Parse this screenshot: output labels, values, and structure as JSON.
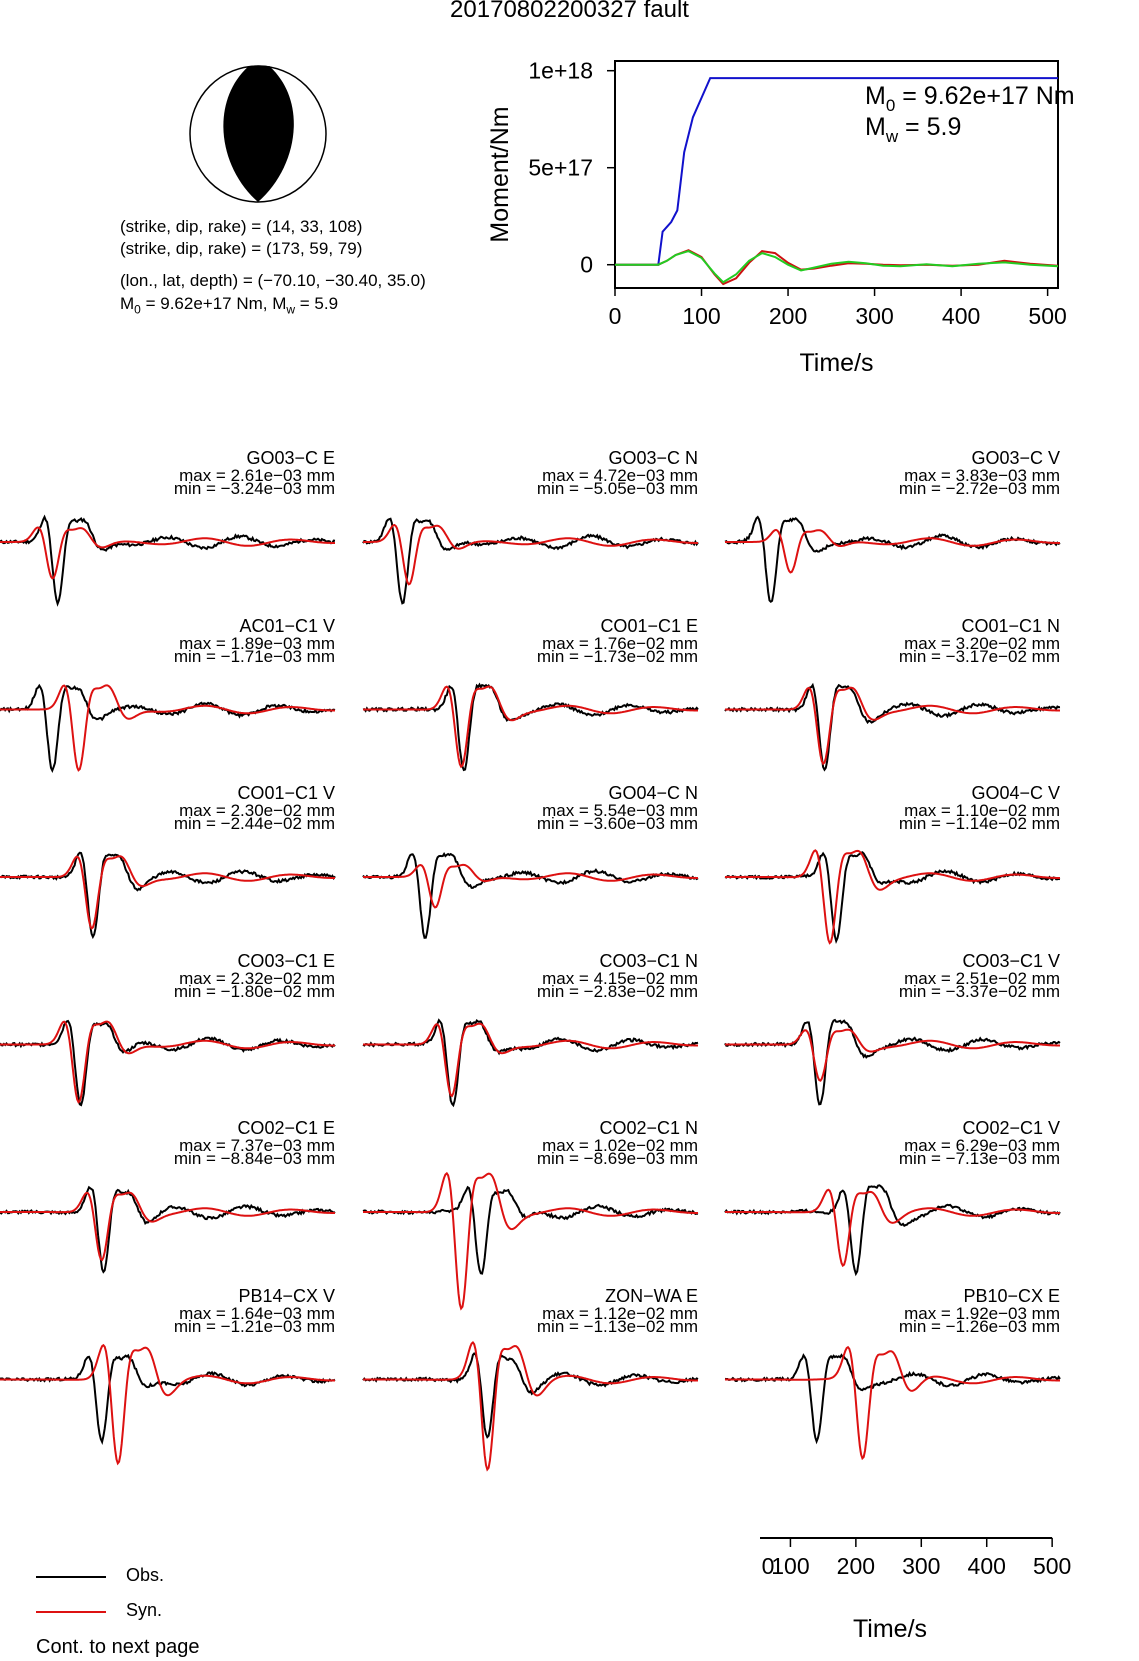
{
  "title": "20170802200327 fault",
  "params": {
    "line1": "(strike, dip, rake) = (14, 33, 108)",
    "line2": "(strike, dip, rake) = (173, 59, 79)",
    "line3": "(lon., lat, depth) = (−70.10, −30.40, 35.0)",
    "line4_m0": "M",
    "line4_m0_sub": "0",
    "line4_m0_val": " = 9.62e+17 Nm, M",
    "line4_mw_sub": "w",
    "line4_mw_val": " = 5.9"
  },
  "colors": {
    "obs": "#000000",
    "syn": "#dd1111",
    "moment": "#1111cc",
    "mrf_red": "#cc1111",
    "mrf_green": "#22cc22"
  },
  "chart_data": [
    {
      "type": "line",
      "title": "",
      "xlabel": "Time/s",
      "ylabel": "Moment/Nm",
      "xlim": [
        0,
        512
      ],
      "ylim": [
        -1.2e+17,
        1.05e+18
      ],
      "xticks": [
        "0",
        "100",
        "200",
        "300",
        "400",
        "500"
      ],
      "yticks": [
        "0",
        "5e+17",
        "1e+18"
      ],
      "annotation_m0": "M",
      "annotation_m0_sub": "0",
      "annotation_m0_val": " = 9.62e+17 Nm",
      "annotation_mw": "M",
      "annotation_mw_sub": "w",
      "annotation_mw_val": " = 5.9",
      "series": [
        {
          "color": "blue",
          "x": [
            0,
            50,
            55,
            65,
            72,
            80,
            90,
            100,
            110,
            512
          ],
          "y": [
            0,
            0,
            1.7e+17,
            2.2e+17,
            2.8e+17,
            5.8e+17,
            7.6e+17,
            8.6e+17,
            9.62e+17,
            9.62e+17
          ]
        },
        {
          "color": "red",
          "x": [
            0,
            50,
            60,
            70,
            85,
            100,
            115,
            125,
            140,
            155,
            170,
            185,
            200,
            215,
            230,
            250,
            270,
            290,
            310,
            330,
            360,
            390,
            420,
            450,
            480,
            512
          ],
          "y": [
            0,
            0,
            2e+16,
            5e+16,
            7.5e+16,
            4e+16,
            -5e+16,
            -1e+17,
            -7e+16,
            1e+16,
            7e+16,
            6e+16,
            1e+16,
            -2.5e+16,
            -2e+16,
            -5000000000000000.0,
            8000000000000000.0,
            5000000000000000.0,
            0,
            -3000000000000000.0,
            0,
            -5000000000000000.0,
            0,
            2e+16,
            5000000000000000.0,
            -5000000000000000.0
          ]
        },
        {
          "color": "green",
          "x": [
            0,
            50,
            60,
            70,
            85,
            100,
            115,
            125,
            140,
            155,
            170,
            185,
            200,
            215,
            230,
            250,
            270,
            290,
            310,
            330,
            360,
            390,
            420,
            450,
            480,
            512
          ],
          "y": [
            0,
            0,
            2e+16,
            5e+16,
            7e+16,
            3.5e+16,
            -4.5e+16,
            -9e+16,
            -5e+16,
            2e+16,
            6e+16,
            4e+16,
            0,
            -3e+16,
            -1.5e+16,
            5000000000000000.0,
            1.5e+16,
            8000000000000000.0,
            -5000000000000000.0,
            -8000000000000000.0,
            2000000000000000.0,
            -8000000000000000.0,
            5000000000000000.0,
            1.2e+16,
            0,
            -8000000000000000.0
          ]
        }
      ]
    },
    {
      "type": "line",
      "title": "",
      "xlabel": "Time/s",
      "xlim": [
        0,
        512
      ],
      "xticks": [
        "0",
        "100",
        "200",
        "300",
        "400",
        "500"
      ],
      "stations": [
        {
          "name": "GO03−C E",
          "max": "max = 2.61e−03 mm",
          "min": "min = −3.24e−03 mm",
          "p0": 60,
          "amp": 1.0,
          "obsLag": 8,
          "synScale": 0.6
        },
        {
          "name": "GO03−C N",
          "max": "max = 4.72e−03 mm",
          "min": "min = −5.05e−03 mm",
          "p0": 50,
          "amp": 1.0,
          "obsLag": -10,
          "synScale": 0.7
        },
        {
          "name": "GO03−C V",
          "max": "max = 3.83e−03 mm",
          "min": "min = −2.72e−03 mm",
          "p0": 80,
          "amp": 1.0,
          "obsLag": -30,
          "synScale": 0.5
        },
        {
          "name": "AC01−C1 V",
          "max": "max = 1.89e−03 mm",
          "min": "min = −1.71e−03 mm",
          "p0": 100,
          "amp": 1.0,
          "obsLag": -40,
          "synScale": 1.0
        },
        {
          "name": "CO01−C1 E",
          "max": "max = 1.76e−02 mm",
          "min": "min = −1.73e−02 mm",
          "p0": 130,
          "amp": 1.0,
          "obsLag": 4,
          "synScale": 0.95
        },
        {
          "name": "CO01−C1 N",
          "max": "max = 3.20e−02 mm",
          "min": "min = −3.17e−02 mm",
          "p0": 130,
          "amp": 1.0,
          "obsLag": 2,
          "synScale": 0.9
        },
        {
          "name": "CO01−C1 V",
          "max": "max = 2.30e−02 mm",
          "min": "min = −2.44e−02 mm",
          "p0": 120,
          "amp": 1.0,
          "obsLag": 2,
          "synScale": 0.85
        },
        {
          "name": "GO04−C N",
          "max": "max = 5.54e−03 mm",
          "min": "min = −3.60e−03 mm",
          "p0": 90,
          "amp": 1.0,
          "obsLag": -15,
          "synScale": 0.5
        },
        {
          "name": "GO04−C V",
          "max": "max = 1.10e−02 mm",
          "min": "min = −1.14e−02 mm",
          "p0": 140,
          "amp": 1.0,
          "obsLag": 10,
          "synScale": 1.1
        },
        {
          "name": "CO03−C1 E",
          "max": "max = 2.32e−02 mm",
          "min": "min = −1.80e−02 mm",
          "p0": 100,
          "amp": 1.0,
          "obsLag": 3,
          "synScale": 0.95
        },
        {
          "name": "CO03−C1 N",
          "max": "max = 4.15e−02 mm",
          "min": "min = −2.83e−02 mm",
          "p0": 115,
          "amp": 1.0,
          "obsLag": 2,
          "synScale": 0.85
        },
        {
          "name": "CO03−C1 V",
          "max": "max = 2.51e−02 mm",
          "min": "min = −3.37e−02 mm",
          "p0": 125,
          "amp": 1.0,
          "obsLag": 0,
          "synScale": 0.6
        },
        {
          "name": "CO02−C1 E",
          "max": "max = 7.37e−03 mm",
          "min": "min = −8.84e−03 mm",
          "p0": 135,
          "amp": 1.0,
          "obsLag": 3,
          "synScale": 0.8
        },
        {
          "name": "CO02−C1 N",
          "max": "max = 1.02e−02 mm",
          "min": "min = −8.69e−03 mm",
          "p0": 130,
          "amp": 1.0,
          "obsLag": 30,
          "synScale": 1.6
        },
        {
          "name": "CO02−C1 V",
          "max": "max = 6.29e−03 mm",
          "min": "min = −7.13e−03 mm",
          "p0": 160,
          "amp": 1.0,
          "obsLag": 20,
          "synScale": 0.9
        },
        {
          "name": "PB14−CX V",
          "max": "max = 1.64e−03 mm",
          "min": "min = −1.21e−03 mm",
          "p0": 160,
          "amp": 1.0,
          "obsLag": -25,
          "synScale": 1.4
        },
        {
          "name": "ZON−WA E",
          "max": "max = 1.12e−02 mm",
          "min": "min = −1.13e−02 mm",
          "p0": 170,
          "amp": 1.0,
          "obsLag": 0,
          "synScale": 1.5
        },
        {
          "name": "PB10−CX E",
          "max": "max = 1.92e−03 mm",
          "min": "min = −1.26e−03 mm",
          "p0": 190,
          "amp": 1.0,
          "obsLag": -70,
          "synScale": 1.3
        }
      ]
    }
  ],
  "legend": {
    "obs": "Obs.",
    "syn": "Syn."
  },
  "footer": "Cont. to next page"
}
